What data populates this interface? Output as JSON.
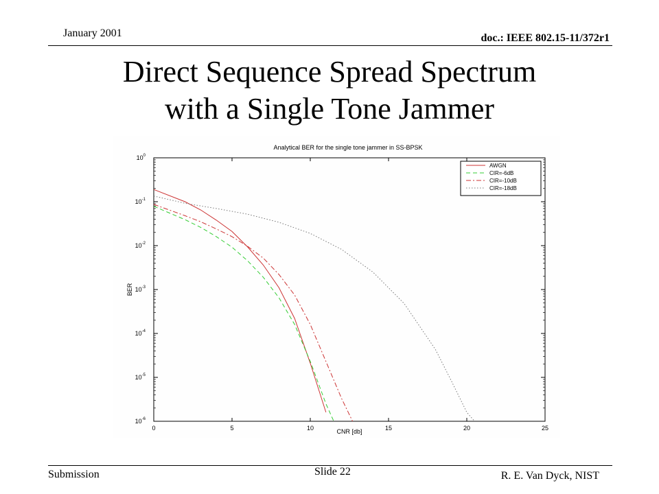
{
  "header": {
    "date": "January 2001",
    "doc": "doc.: IEEE 802.15-11/372r1"
  },
  "slide_title": {
    "line1": "Direct Sequence Spread Spectrum",
    "line2": "with a Single Tone Jammer"
  },
  "footer": {
    "left": "Submission",
    "center": "Slide 22",
    "right": "R. E. Van Dyck, NIST"
  },
  "chart_data": {
    "type": "line",
    "title": "Analytical BER for the single tone jammer in SS-BPSK",
    "xlabel": "CNR [db]",
    "ylabel": "BER",
    "xlim": [
      0,
      25
    ],
    "ylim": [
      1e-06,
      1
    ],
    "yscale": "log",
    "xticks": [
      "0",
      "5",
      "10",
      "15",
      "20",
      "25"
    ],
    "yticks": [
      {
        "base": "10",
        "exp": "0"
      },
      {
        "base": "10",
        "exp": "-1"
      },
      {
        "base": "10",
        "exp": "-2"
      },
      {
        "base": "10",
        "exp": "-3"
      },
      {
        "base": "10",
        "exp": "-4"
      },
      {
        "base": "10",
        "exp": "-5"
      },
      {
        "base": "10",
        "exp": "-6"
      }
    ],
    "grid": false,
    "legend_position": "top-right",
    "series": [
      {
        "name": "AWGN",
        "color": "#cc3333",
        "dash": "solid",
        "x": [
          0,
          2,
          3,
          4,
          5,
          6,
          7,
          8,
          9,
          10,
          11
        ],
        "y": [
          0.19,
          0.1,
          0.065,
          0.038,
          0.021,
          0.0093,
          0.0036,
          0.0011,
          0.00022,
          2.1e-05,
          1.6e-06
        ]
      },
      {
        "name": "CIR=-6dB",
        "color": "#33cc33",
        "dash": "dashed",
        "x": [
          0,
          2,
          3,
          4,
          5,
          6,
          7,
          8,
          9,
          10,
          11,
          11.5
        ],
        "y": [
          0.079,
          0.039,
          0.026,
          0.016,
          0.0092,
          0.0045,
          0.0019,
          0.00065,
          0.00016,
          2.3e-05,
          2.5e-06,
          1e-06
        ]
      },
      {
        "name": "CIR=-10dB",
        "color": "#cc3333",
        "dash": "dashdot",
        "x": [
          0,
          2,
          3,
          4,
          5,
          6,
          7,
          8,
          9,
          10,
          11,
          12,
          12.7
        ],
        "y": [
          0.087,
          0.048,
          0.035,
          0.024,
          0.016,
          0.0096,
          0.0052,
          0.0022,
          0.00075,
          0.00016,
          2.3e-05,
          3.3e-06,
          1e-06
        ]
      },
      {
        "name": "CIR=-18dB",
        "color": "#777777",
        "dash": "dotted",
        "x": [
          0,
          2,
          4,
          6,
          8,
          10,
          12,
          14,
          16,
          18,
          19,
          20,
          20.5
        ],
        "y": [
          0.135,
          0.092,
          0.07,
          0.052,
          0.034,
          0.019,
          0.0082,
          0.0025,
          0.00048,
          4.3e-05,
          8.5e-06,
          1.6e-06,
          1e-06
        ]
      }
    ]
  }
}
